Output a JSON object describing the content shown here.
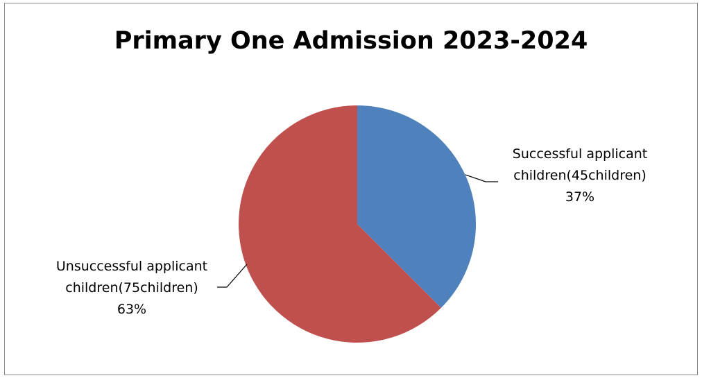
{
  "chart_data": {
    "type": "pie",
    "title": "Primary One Admission 2023-2024",
    "slices": [
      {
        "label_line1": "Successful applicant",
        "label_line2": "children(45children)",
        "value": 45,
        "percent_label": "37%",
        "color": "#4f81bd"
      },
      {
        "label_line1": "Unsuccessful applicant",
        "label_line2": "children(75children)",
        "value": 75,
        "percent_label": "63%",
        "color": "#c0504d"
      }
    ],
    "legend": "none"
  }
}
